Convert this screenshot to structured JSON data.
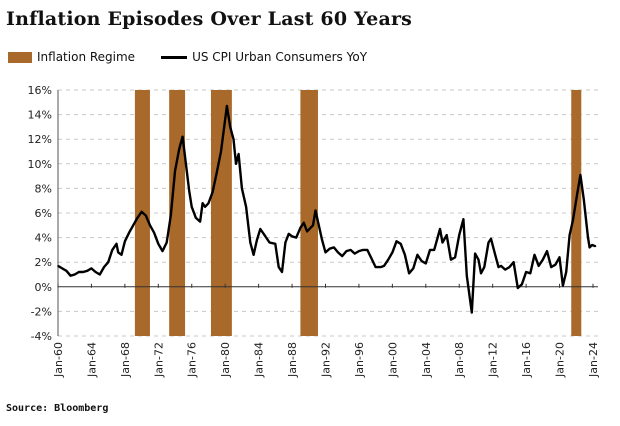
{
  "chart_data": {
    "type": "line",
    "title": "Inflation Episodes Over Last 60 Years",
    "source": "Source: Bloomberg",
    "legend": [
      "Inflation Regime",
      "US CPI Urban Consumers YoY"
    ],
    "legend_placement": "top-left",
    "colors": {
      "band": "#a8692a",
      "line": "#000000",
      "grid": "#c8c8c8"
    },
    "xlim": [
      1960,
      2024.6
    ],
    "ylim": [
      -4,
      16
    ],
    "y_ticks": [
      -4,
      -2,
      0,
      2,
      4,
      6,
      8,
      10,
      12,
      14,
      16
    ],
    "y_tick_labels": [
      "-4%",
      "-2%",
      "0%",
      "2%",
      "4%",
      "6%",
      "8%",
      "10%",
      "12%",
      "14%",
      "16%"
    ],
    "x_ticks": [
      1960,
      1964,
      1968,
      1972,
      1976,
      1980,
      1984,
      1988,
      1992,
      1996,
      2000,
      2004,
      2008,
      2012,
      2016,
      2020,
      2024
    ],
    "x_tick_labels": [
      "Jan-60",
      "Jan-64",
      "Jan-68",
      "Jan-72",
      "Jan-76",
      "Jan-80",
      "Jan-84",
      "Jan-88",
      "Jan-92",
      "Jan-96",
      "Jan-00",
      "Jan-04",
      "Jan-08",
      "Jan-12",
      "Jan-16",
      "Jan-20",
      "Jan-24"
    ],
    "grid": true,
    "inflation_regimes": [
      [
        1969.2,
        1971.0
      ],
      [
        1973.3,
        1975.2
      ],
      [
        1978.3,
        1980.8
      ],
      [
        1989.0,
        1991.1
      ],
      [
        2021.4,
        2022.6
      ]
    ],
    "series": [
      {
        "name": "US CPI Urban Consumers YoY",
        "x": [
          1960,
          1960.5,
          1961,
          1961.5,
          1962,
          1962.5,
          1963,
          1963.5,
          1964,
          1964.5,
          1965,
          1965.5,
          1966,
          1966.5,
          1967,
          1967.2,
          1967.6,
          1968,
          1968.5,
          1969,
          1969.5,
          1970,
          1970.5,
          1971,
          1971.5,
          1972,
          1972.5,
          1973,
          1973.5,
          1974,
          1974.5,
          1974.9,
          1975.3,
          1975.7,
          1976,
          1976.5,
          1977,
          1977.3,
          1977.6,
          1978,
          1978.5,
          1979,
          1979.5,
          1980.2,
          1980.6,
          1981,
          1981.3,
          1981.6,
          1982,
          1982.5,
          1983,
          1983.4,
          1983.8,
          1984.2,
          1984.7,
          1985.3,
          1986,
          1986.4,
          1986.8,
          1987.2,
          1987.6,
          1988,
          1988.5,
          1989,
          1989.4,
          1989.8,
          1990.5,
          1990.8,
          1991.2,
          1991.6,
          1992,
          1992.5,
          1993,
          1993.5,
          1994,
          1994.5,
          1995,
          1995.5,
          1996,
          1996.5,
          1997,
          1997.5,
          1998,
          1998.6,
          1999,
          1999.5,
          2000,
          2000.5,
          2001,
          2001.5,
          2002,
          2002.5,
          2003,
          2003.5,
          2004,
          2004.5,
          2005,
          2005.7,
          2006,
          2006.5,
          2007,
          2007.5,
          2008,
          2008.5,
          2008.9,
          2009.5,
          2009.9,
          2010.3,
          2010.6,
          2011,
          2011.5,
          2011.8,
          2012.3,
          2012.7,
          2013,
          2013.5,
          2014,
          2014.5,
          2015,
          2015.5,
          2016,
          2016.5,
          2017,
          2017.5,
          2018,
          2018.5,
          2019,
          2019.5,
          2020,
          2020.4,
          2020.8,
          2021.2,
          2021.6,
          2022.1,
          2022.5,
          2022.9,
          2023.4,
          2023.6,
          2023.9,
          2024.3
        ],
        "y": [
          1.7,
          1.5,
          1.3,
          0.9,
          1.0,
          1.2,
          1.2,
          1.3,
          1.5,
          1.2,
          1.0,
          1.6,
          2.0,
          3.0,
          3.5,
          2.8,
          2.6,
          3.7,
          4.4,
          5.0,
          5.6,
          6.1,
          5.8,
          5.0,
          4.4,
          3.5,
          2.9,
          3.6,
          5.8,
          9.4,
          11.2,
          12.2,
          10.0,
          7.8,
          6.5,
          5.6,
          5.3,
          6.8,
          6.5,
          6.8,
          7.7,
          9.3,
          11.0,
          14.7,
          13.0,
          12.0,
          10.0,
          10.8,
          8.0,
          6.5,
          3.6,
          2.6,
          3.8,
          4.7,
          4.2,
          3.6,
          3.5,
          1.6,
          1.2,
          3.6,
          4.3,
          4.1,
          4.0,
          4.8,
          5.2,
          4.5,
          5.0,
          6.2,
          5.0,
          3.8,
          2.8,
          3.1,
          3.2,
          2.8,
          2.5,
          2.9,
          3.0,
          2.7,
          2.9,
          3.0,
          3.0,
          2.3,
          1.6,
          1.6,
          1.7,
          2.2,
          2.8,
          3.7,
          3.5,
          2.6,
          1.1,
          1.5,
          2.6,
          2.1,
          1.9,
          3.0,
          3.0,
          4.7,
          3.6,
          4.2,
          2.2,
          2.4,
          4.2,
          5.5,
          0.9,
          -2.1,
          2.7,
          2.2,
          1.1,
          1.6,
          3.6,
          3.9,
          2.6,
          1.6,
          1.7,
          1.4,
          1.6,
          2.0,
          -0.1,
          0.2,
          1.2,
          1.1,
          2.6,
          1.7,
          2.2,
          2.9,
          1.6,
          1.8,
          2.4,
          0.1,
          1.2,
          4.2,
          5.4,
          7.5,
          9.1,
          7.1,
          4.0,
          3.2,
          3.4,
          3.3
        ]
      }
    ]
  }
}
